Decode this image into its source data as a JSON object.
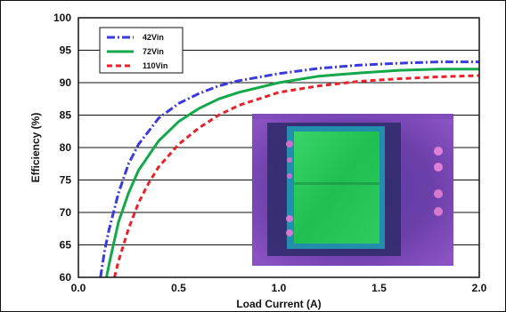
{
  "chart_data": {
    "type": "line",
    "title": "",
    "xlabel": "Load Current (A)",
    "ylabel": "Efficiency (%)",
    "xlim": [
      0.0,
      2.0
    ],
    "ylim": [
      60,
      100
    ],
    "x_ticks": [
      "0.0",
      "0.5",
      "1.0",
      "1.5",
      "2.0"
    ],
    "y_ticks": [
      "60",
      "65",
      "70",
      "75",
      "80",
      "85",
      "90",
      "95",
      "100"
    ],
    "grid": "horizontal",
    "legend_position": "top-left",
    "series": [
      {
        "name": "42Vin",
        "color": "#3a3adf",
        "style": "dash-dot",
        "x": [
          0.11,
          0.13,
          0.15,
          0.2,
          0.25,
          0.3,
          0.4,
          0.5,
          0.6,
          0.7,
          0.8,
          1.0,
          1.2,
          1.4,
          1.6,
          1.8,
          2.0
        ],
        "y": [
          60,
          64,
          67,
          73,
          77.5,
          80.5,
          84.5,
          86.8,
          88.3,
          89.5,
          90.3,
          91.4,
          92.2,
          92.7,
          93.0,
          93.2,
          93.2
        ]
      },
      {
        "name": "72Vin",
        "color": "#13a84a",
        "style": "solid",
        "x": [
          0.14,
          0.16,
          0.2,
          0.25,
          0.3,
          0.4,
          0.5,
          0.6,
          0.7,
          0.8,
          1.0,
          1.2,
          1.4,
          1.6,
          1.8,
          2.0
        ],
        "y": [
          60,
          63,
          68.5,
          73,
          76.5,
          81,
          84,
          86,
          87.5,
          88.5,
          90,
          91,
          91.5,
          91.9,
          92.1,
          92.1
        ]
      },
      {
        "name": "110Vin",
        "color": "#e8212b",
        "style": "dashed",
        "x": [
          0.18,
          0.2,
          0.25,
          0.3,
          0.35,
          0.4,
          0.5,
          0.6,
          0.7,
          0.8,
          1.0,
          1.2,
          1.4,
          1.6,
          1.8,
          2.0
        ],
        "y": [
          60,
          62.5,
          67.5,
          71.5,
          74.5,
          77,
          80.5,
          83,
          85,
          86.5,
          88.5,
          89.5,
          90.2,
          90.6,
          90.9,
          91.1
        ]
      }
    ]
  }
}
